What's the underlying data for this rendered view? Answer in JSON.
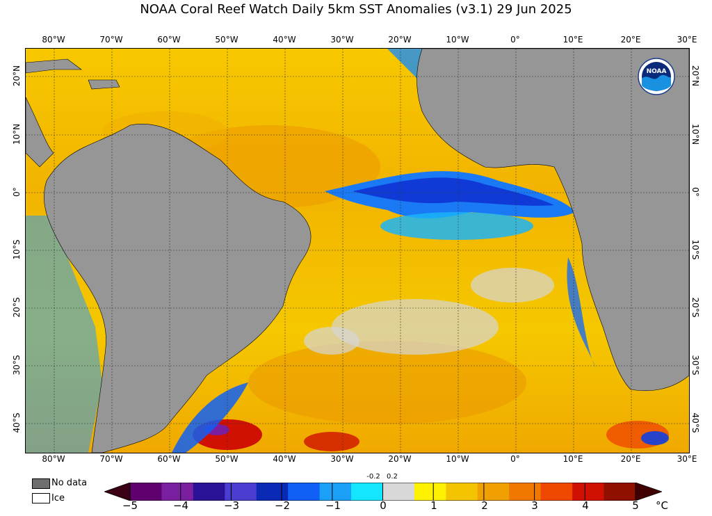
{
  "title": "NOAA Coral Reef Watch Daily 5km SST Anomalies  (v3.1)   29 Jun 2025",
  "longitudes": [
    "80°W",
    "70°W",
    "60°W",
    "50°W",
    "40°W",
    "30°W",
    "20°W",
    "10°W",
    "0°",
    "10°E",
    "20°E",
    "30°E"
  ],
  "latitudes": [
    "20°N",
    "10°N",
    "0°",
    "10°S",
    "20°S",
    "30°S",
    "40°S"
  ],
  "legend": {
    "no_data": "No data",
    "ice": "Ice",
    "no_data_color": "#6e6e6e",
    "ice_color": "#ffffff",
    "land_color": "#969696"
  },
  "colorbar": {
    "ticks": [
      "−5",
      "−4",
      "−3",
      "−2",
      "−1",
      "0",
      "1",
      "2",
      "3",
      "4",
      "5"
    ],
    "small_ticks": [
      "-0.2",
      "0.2"
    ],
    "unit": "°C",
    "colors": [
      "#3a0014",
      "#60006e",
      "#7a1fa0",
      "#2a1196",
      "#4a3ed0",
      "#0a2ab5",
      "#1060f5",
      "#1aa0f7",
      "#14e6ff",
      "#d8d8d8",
      "#fff200",
      "#f5c400",
      "#f0a000",
      "#f07800",
      "#f04800",
      "#d01000",
      "#901000",
      "#400000"
    ]
  },
  "logo_text": "NOAA"
}
